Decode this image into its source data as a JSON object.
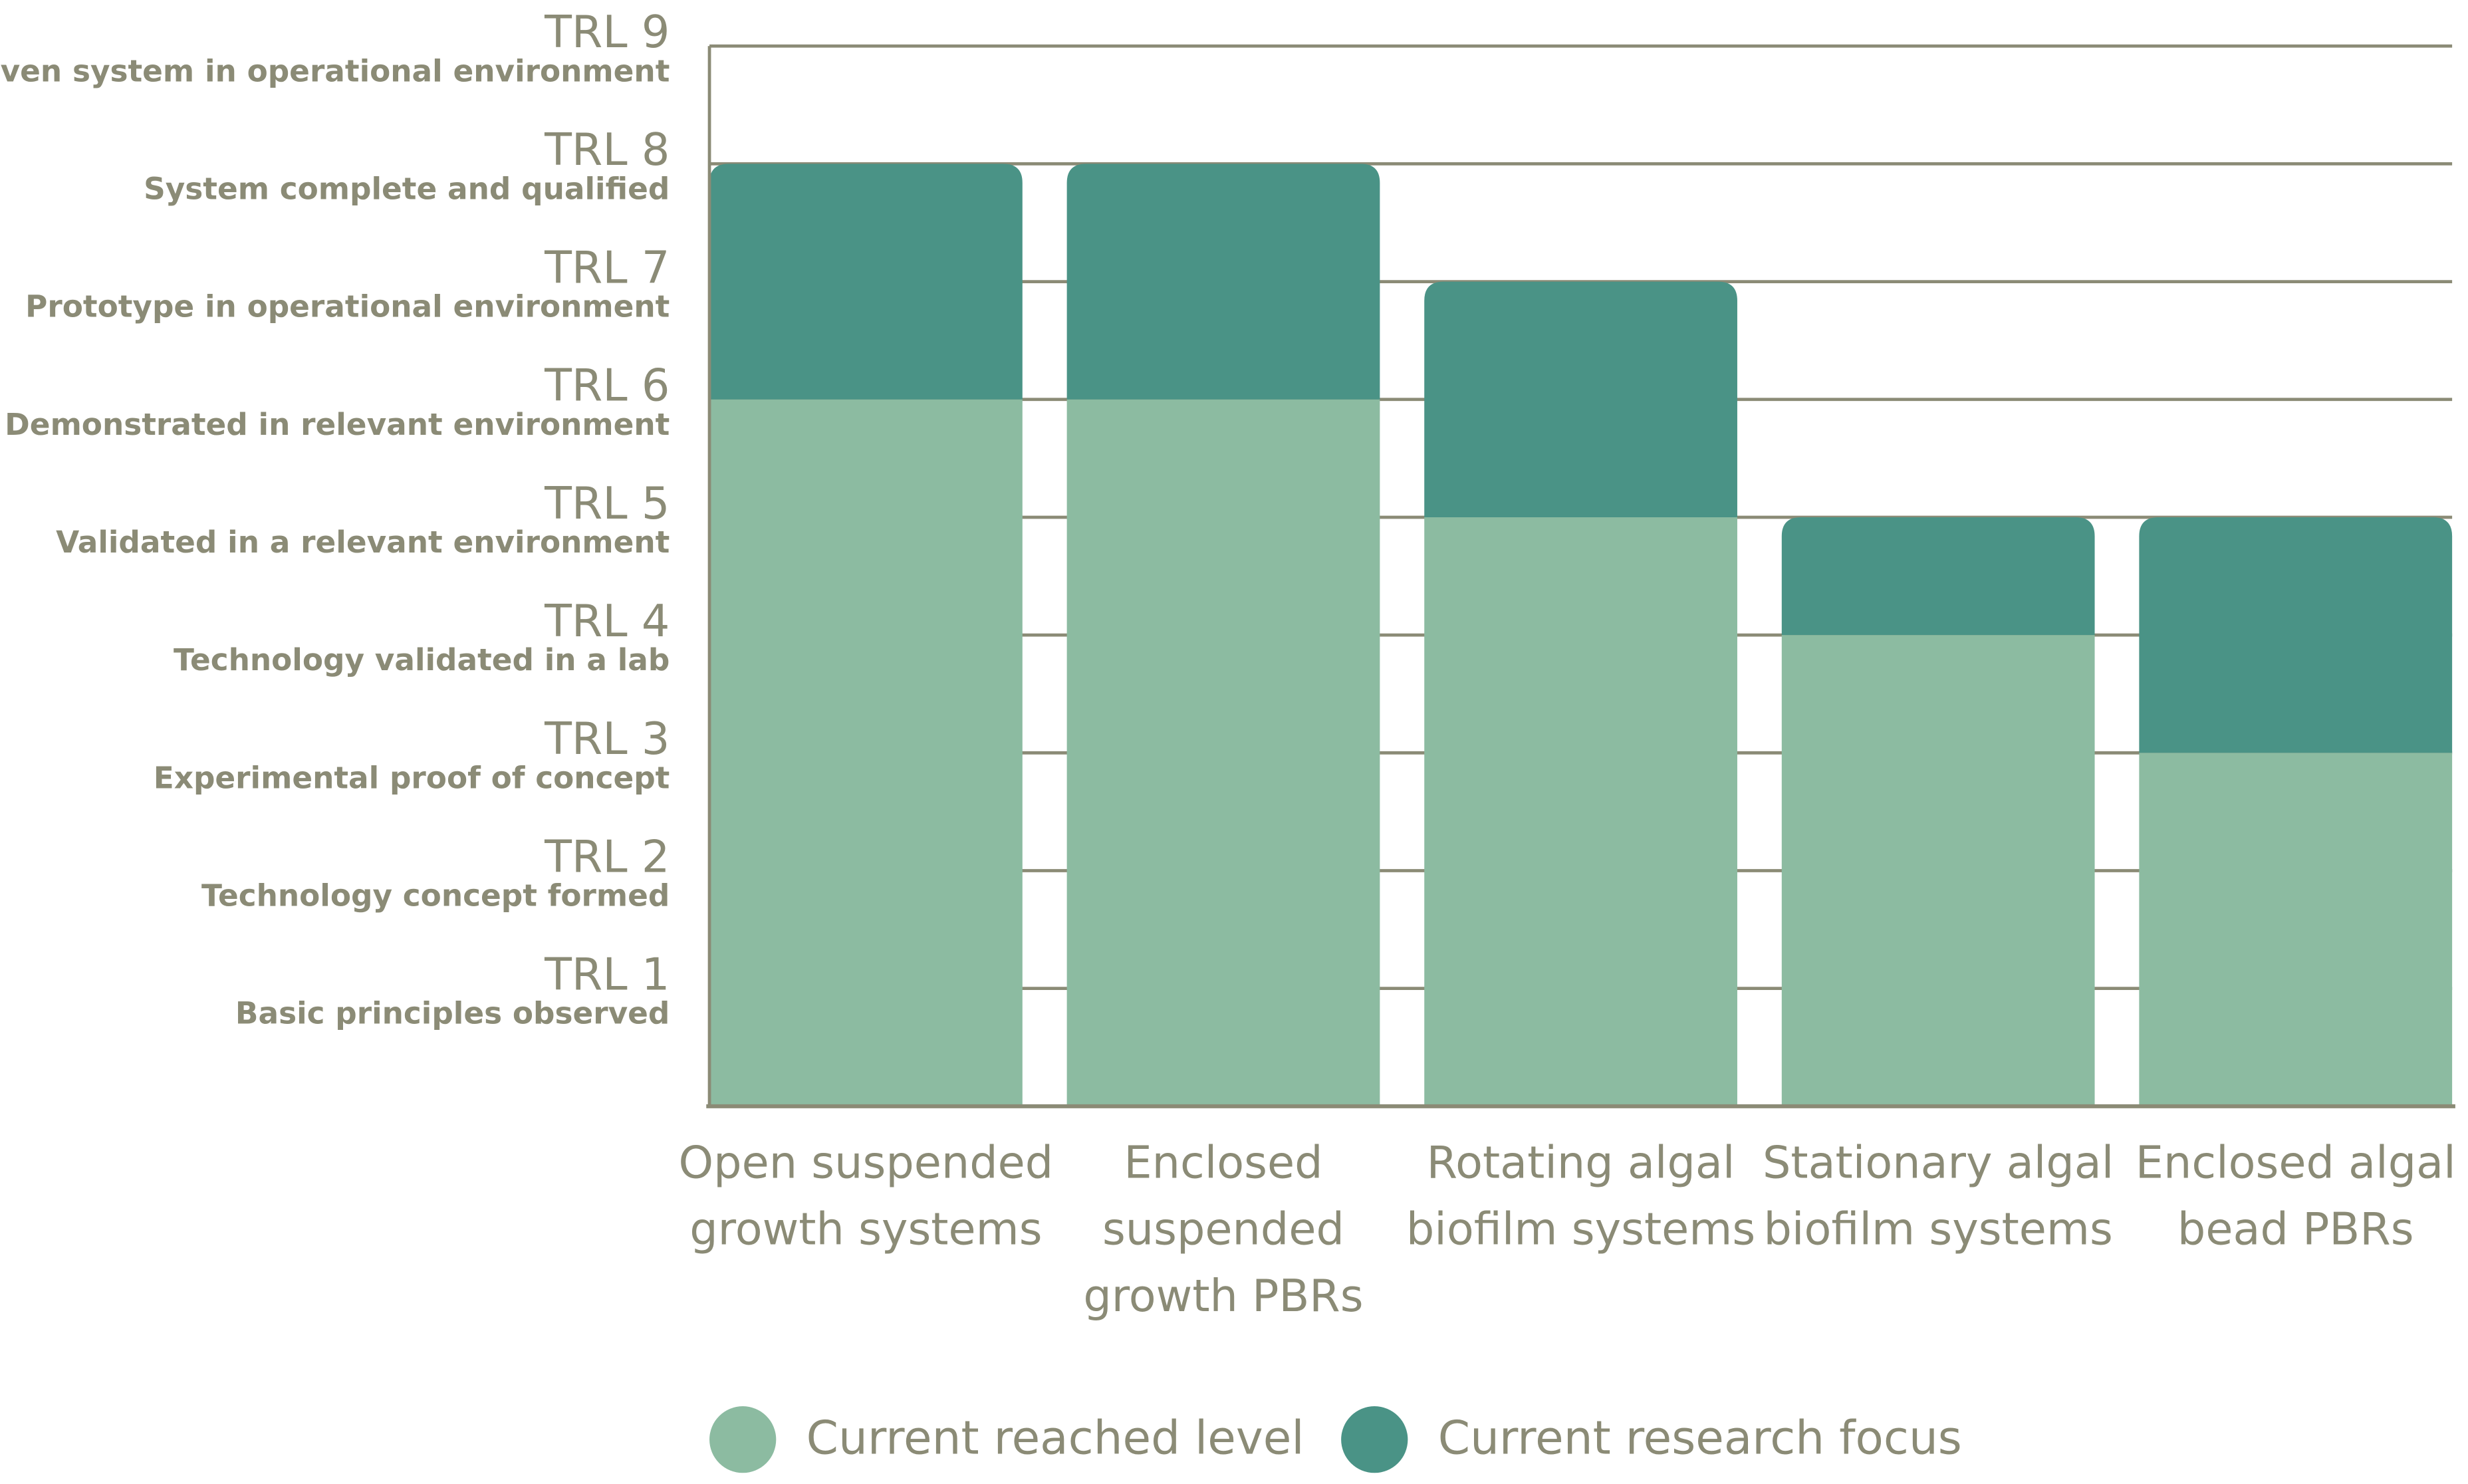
{
  "chart_data": {
    "type": "stacked-bar",
    "categories": [
      "Open suspended growth systems",
      "Enclosed suspended growth PBRs",
      "Rotating algal biofilm systems",
      "Stationary algal biofilm systems",
      "Enclosed algal bead PBRs"
    ],
    "series": [
      {
        "name": "Current reached level",
        "color": "#8cbba1",
        "values": [
          6,
          6,
          5,
          4,
          3
        ]
      },
      {
        "name": "Current research focus",
        "color": "#4a9386",
        "values": [
          2,
          2,
          2,
          1,
          2
        ]
      }
    ],
    "ylim": [
      0,
      9
    ],
    "yticks": [
      {
        "value": 1,
        "label": "TRL 1"
      },
      {
        "value": 2,
        "label": "TRL 2"
      },
      {
        "value": 3,
        "label": "TRL 3"
      },
      {
        "value": 4,
        "label": "TRL 4"
      },
      {
        "value": 5,
        "label": "TRL 5"
      },
      {
        "value": 6,
        "label": "TRL 6"
      },
      {
        "value": 7,
        "label": "TRL 7"
      },
      {
        "value": 8,
        "label": "TRL 8"
      },
      {
        "value": 9,
        "label": "TRL 9"
      }
    ],
    "ytick_descriptions": [
      "Basic principles observed",
      "Technology concept formed",
      "Experimental proof of concept",
      "Technology validated in a lab",
      "Validated in a relevant environment",
      "Demonstrated in relevant environment",
      "Prototype in operational environment",
      "System complete and qualified",
      "Proven system in operational environment"
    ],
    "grid": true,
    "legend": "bottom"
  }
}
